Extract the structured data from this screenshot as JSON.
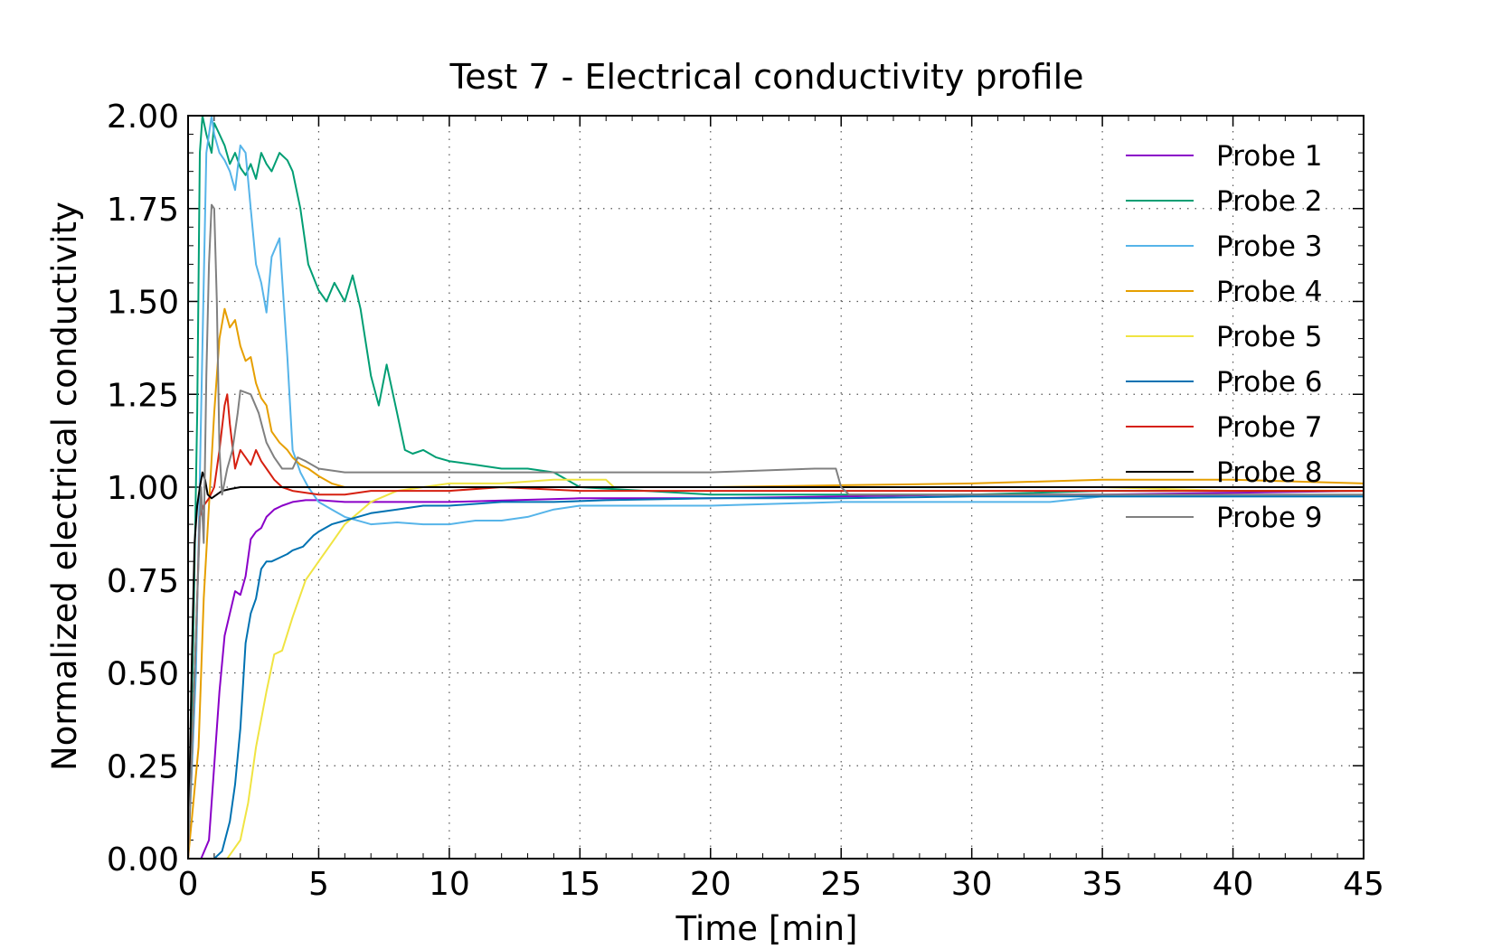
{
  "chart_data": {
    "type": "line",
    "title": "Test 7 - Electrical conductivity profile",
    "xlabel": "Time [min]",
    "ylabel": "Normalized electrical conductivity",
    "xlim": [
      0,
      45
    ],
    "ylim": [
      0,
      2
    ],
    "xticks": [
      0,
      5,
      10,
      15,
      20,
      25,
      30,
      35,
      40,
      45
    ],
    "xtick_labels": [
      "0",
      "5",
      "10",
      "15",
      "20",
      "25",
      "30",
      "35",
      "40",
      "45"
    ],
    "yticks": [
      0,
      0.25,
      0.5,
      0.75,
      1.0,
      1.25,
      1.5,
      1.75,
      2.0
    ],
    "ytick_labels": [
      "0.00",
      "0.25",
      "0.50",
      "0.75",
      "1.00",
      "1.25",
      "1.50",
      "1.75",
      "2.00"
    ],
    "grid": true,
    "legend_position": "top-right",
    "series": [
      {
        "name": "Probe 1",
        "color": "#8a00c8",
        "x": [
          0,
          0.5,
          0.8,
          1.0,
          1.2,
          1.4,
          1.6,
          1.8,
          2.0,
          2.2,
          2.4,
          2.6,
          2.8,
          3.0,
          3.3,
          3.6,
          4.0,
          4.5,
          5,
          6,
          8,
          10,
          15,
          20,
          25,
          30,
          35,
          40,
          45
        ],
        "y": [
          0,
          0,
          0.05,
          0.25,
          0.45,
          0.6,
          0.66,
          0.72,
          0.71,
          0.76,
          0.86,
          0.88,
          0.89,
          0.92,
          0.94,
          0.95,
          0.96,
          0.965,
          0.965,
          0.96,
          0.96,
          0.96,
          0.97,
          0.97,
          0.975,
          0.98,
          0.98,
          0.985,
          0.99
        ]
      },
      {
        "name": "Probe 2",
        "color": "#009e73",
        "x": [
          0,
          0.2,
          0.35,
          0.45,
          0.55,
          0.7,
          0.9,
          1.0,
          1.2,
          1.4,
          1.6,
          1.8,
          2.0,
          2.2,
          2.4,
          2.6,
          2.8,
          3.0,
          3.2,
          3.5,
          3.8,
          4.0,
          4.3,
          4.6,
          5.0,
          5.3,
          5.6,
          6.0,
          6.3,
          6.6,
          7.0,
          7.3,
          7.6,
          8.0,
          8.3,
          8.6,
          9.0,
          9.5,
          10,
          11,
          12,
          13,
          14,
          14.5,
          15,
          20,
          25,
          30,
          35,
          40,
          45
        ],
        "y": [
          0,
          0.6,
          1.2,
          1.9,
          2.0,
          1.95,
          1.9,
          1.98,
          1.95,
          1.92,
          1.87,
          1.9,
          1.86,
          1.84,
          1.87,
          1.83,
          1.9,
          1.87,
          1.85,
          1.9,
          1.88,
          1.85,
          1.75,
          1.6,
          1.53,
          1.5,
          1.55,
          1.5,
          1.57,
          1.48,
          1.3,
          1.22,
          1.33,
          1.2,
          1.1,
          1.09,
          1.1,
          1.08,
          1.07,
          1.06,
          1.05,
          1.05,
          1.04,
          1.02,
          1.0,
          0.98,
          0.98,
          0.98,
          0.99,
          0.99,
          0.99
        ]
      },
      {
        "name": "Probe 3",
        "color": "#56b4e9",
        "x": [
          0,
          0.3,
          0.5,
          0.7,
          0.9,
          1.0,
          1.2,
          1.4,
          1.6,
          1.8,
          2.0,
          2.2,
          2.4,
          2.6,
          2.8,
          3.0,
          3.2,
          3.5,
          3.8,
          4.0,
          4.3,
          4.6,
          5.0,
          5.5,
          6.0,
          7,
          8,
          9,
          10,
          11,
          12,
          13,
          13.5,
          14,
          15,
          18,
          20,
          25,
          30,
          33,
          35,
          40,
          45
        ],
        "y": [
          0,
          0.5,
          1.2,
          1.9,
          2.0,
          1.95,
          1.9,
          1.88,
          1.85,
          1.8,
          1.92,
          1.9,
          1.75,
          1.6,
          1.55,
          1.47,
          1.62,
          1.67,
          1.35,
          1.1,
          1.04,
          1.0,
          0.96,
          0.94,
          0.92,
          0.9,
          0.905,
          0.9,
          0.9,
          0.91,
          0.91,
          0.92,
          0.93,
          0.94,
          0.95,
          0.95,
          0.95,
          0.96,
          0.96,
          0.96,
          0.975,
          0.975,
          0.975
        ]
      },
      {
        "name": "Probe 4",
        "color": "#e69f00",
        "x": [
          0,
          0.4,
          0.6,
          0.8,
          1.0,
          1.2,
          1.4,
          1.6,
          1.8,
          2.0,
          2.2,
          2.4,
          2.6,
          2.8,
          3.0,
          3.2,
          3.5,
          3.8,
          4.0,
          4.3,
          4.6,
          5.0,
          5.5,
          6,
          7,
          8,
          10,
          15,
          20,
          25,
          30,
          35,
          40,
          45
        ],
        "y": [
          0,
          0.3,
          0.7,
          0.95,
          1.2,
          1.4,
          1.48,
          1.43,
          1.45,
          1.38,
          1.34,
          1.35,
          1.28,
          1.24,
          1.22,
          1.15,
          1.12,
          1.1,
          1.08,
          1.06,
          1.05,
          1.03,
          1.01,
          1.0,
          1.0,
          1.0,
          1.0,
          1.0,
          1.0,
          1.005,
          1.01,
          1.02,
          1.02,
          1.01
        ]
      },
      {
        "name": "Probe 5",
        "color": "#f0e442",
        "x": [
          0,
          1.5,
          2.0,
          2.3,
          2.6,
          3.0,
          3.3,
          3.6,
          4.0,
          4.5,
          5.0,
          5.5,
          6.0,
          6.5,
          7,
          8,
          9,
          10,
          12,
          14,
          16,
          16.3,
          20,
          25,
          30,
          35,
          40,
          45
        ],
        "y": [
          0,
          0,
          0.05,
          0.15,
          0.3,
          0.45,
          0.55,
          0.56,
          0.65,
          0.75,
          0.8,
          0.85,
          0.9,
          0.93,
          0.96,
          0.99,
          1.0,
          1.01,
          1.01,
          1.02,
          1.02,
          1.0,
          1.0,
          1.0,
          1.0,
          1.0,
          0.99,
          0.99
        ]
      },
      {
        "name": "Probe 6",
        "color": "#0072b2",
        "x": [
          0,
          1.0,
          1.3,
          1.6,
          1.8,
          2.0,
          2.2,
          2.4,
          2.6,
          2.8,
          3.0,
          3.2,
          3.5,
          3.8,
          4.0,
          4.4,
          4.8,
          5.0,
          5.5,
          6.0,
          6.5,
          7,
          8,
          9,
          10,
          11,
          12,
          14,
          16,
          20,
          25,
          30,
          35,
          40,
          45
        ],
        "y": [
          0,
          0,
          0.02,
          0.1,
          0.2,
          0.35,
          0.58,
          0.66,
          0.7,
          0.78,
          0.8,
          0.8,
          0.81,
          0.82,
          0.83,
          0.84,
          0.87,
          0.88,
          0.9,
          0.91,
          0.92,
          0.93,
          0.94,
          0.95,
          0.95,
          0.955,
          0.96,
          0.96,
          0.965,
          0.97,
          0.97,
          0.975,
          0.975,
          0.975,
          0.975
        ]
      },
      {
        "name": "Probe 7",
        "color": "#d62010",
        "x": [
          0,
          0.3,
          0.45,
          0.6,
          0.8,
          1.0,
          1.2,
          1.4,
          1.5,
          1.6,
          1.8,
          2.0,
          2.2,
          2.4,
          2.6,
          2.8,
          3.0,
          3.3,
          3.6,
          4.0,
          5,
          6,
          7,
          8,
          10,
          12,
          15,
          20,
          25,
          30,
          35,
          40,
          45
        ],
        "y": [
          0,
          0.6,
          0.92,
          0.95,
          0.97,
          1.0,
          1.1,
          1.22,
          1.25,
          1.17,
          1.05,
          1.1,
          1.08,
          1.06,
          1.1,
          1.07,
          1.05,
          1.02,
          1.0,
          0.99,
          0.98,
          0.98,
          0.99,
          0.99,
          0.99,
          1.0,
          0.99,
          0.99,
          0.99,
          0.99,
          0.99,
          0.99,
          0.99
        ]
      },
      {
        "name": "Probe 8",
        "color": "#000000",
        "x": [
          0,
          0.15,
          0.25,
          0.35,
          0.45,
          0.55,
          0.65,
          0.75,
          0.9,
          1.1,
          1.3,
          1.6,
          2.0,
          2.5,
          3,
          4,
          5,
          10,
          15,
          20,
          25,
          30,
          35,
          40,
          45
        ],
        "y": [
          0,
          0.55,
          0.85,
          0.95,
          1.0,
          1.04,
          1.02,
          0.98,
          0.97,
          0.98,
          0.99,
          0.995,
          1.0,
          1.0,
          1.0,
          1.0,
          1.0,
          1.0,
          1.0,
          1.0,
          1.0,
          1.0,
          1.0,
          1.0,
          1.0
        ]
      },
      {
        "name": "Probe 9",
        "color": "#808080",
        "x": [
          0,
          0.3,
          0.5,
          0.6,
          0.7,
          0.8,
          0.9,
          1.0,
          1.1,
          1.2,
          1.3,
          1.5,
          1.7,
          1.9,
          2.0,
          2.4,
          2.7,
          3.0,
          3.3,
          3.6,
          4.0,
          4.2,
          4.5,
          5,
          6,
          8,
          10,
          12,
          15,
          20,
          24,
          24.8,
          25,
          25.3,
          26,
          30,
          35,
          40,
          45
        ],
        "y": [
          0,
          0.6,
          1.0,
          0.85,
          1.3,
          1.6,
          1.76,
          1.75,
          1.5,
          1.1,
          0.98,
          1.05,
          1.1,
          1.2,
          1.26,
          1.25,
          1.2,
          1.12,
          1.08,
          1.05,
          1.05,
          1.08,
          1.07,
          1.05,
          1.04,
          1.04,
          1.04,
          1.04,
          1.04,
          1.04,
          1.05,
          1.05,
          1.0,
          0.98,
          0.98,
          0.98,
          0.98,
          0.98,
          0.98
        ]
      }
    ]
  }
}
